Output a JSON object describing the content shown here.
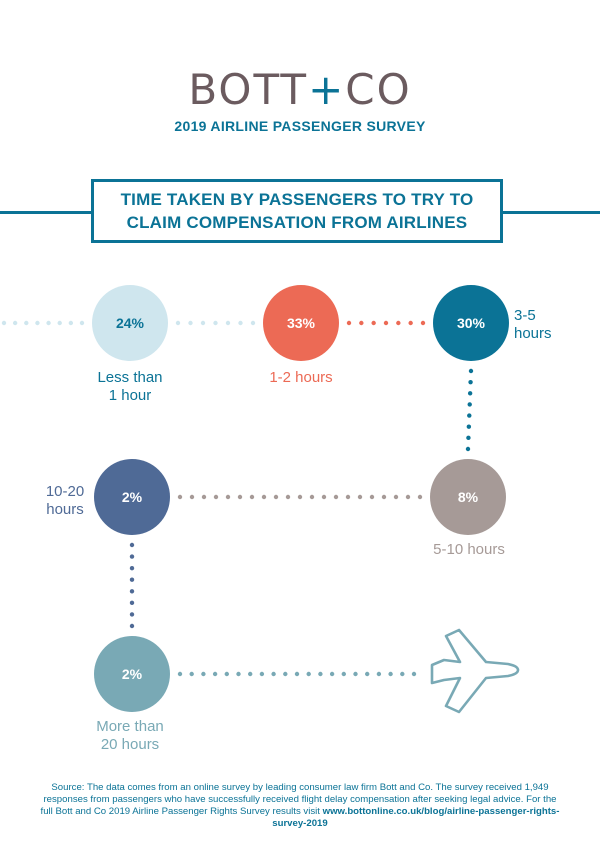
{
  "header": {
    "brand_left": "BOTT",
    "brand_plus": "+",
    "brand_right": "CO",
    "survey": "2019 AIRLINE PASSENGER SURVEY"
  },
  "title_lines": [
    "TIME TAKEN BY PASSENGERS TO TRY TO",
    "CLAIM COMPENSATION FROM AIRLINES"
  ],
  "chart_data": {
    "type": "other",
    "title": "TIME TAKEN BY PASSENGERS TO TRY TO CLAIM COMPENSATION FROM AIRLINES",
    "categories": [
      "Less than 1 hour",
      "1-2 hours",
      "3-5 hours",
      "5-10 hours",
      "10-20 hours",
      "More than 20 hours"
    ],
    "values": [
      24,
      33,
      30,
      8,
      2,
      2
    ],
    "value_labels": [
      "24%",
      "33%",
      "30%",
      "8%",
      "2%",
      "2%"
    ],
    "label_lines": [
      [
        "Less than",
        "1 hour"
      ],
      [
        "1-2 hours"
      ],
      [
        "3-5",
        "hours"
      ],
      [
        "5-10 hours"
      ],
      [
        "10-20",
        "hours"
      ],
      [
        "More than",
        "20 hours"
      ]
    ],
    "colors": [
      "#cfe6ee",
      "#ec6a55",
      "#0b7396",
      "#a69a97",
      "#4f6a96",
      "#79a9b5"
    ],
    "label_colors": [
      "#0b7396",
      "#ec6a55",
      "#0b7396",
      "#a69a97",
      "#4f6a96",
      "#79a9b5"
    ],
    "value_text_colors": [
      "#0b7396",
      "#ffffff",
      "#ffffff",
      "#ffffff",
      "#ffffff",
      "#ffffff"
    ],
    "path_colors": [
      "#cfe6ee",
      "#cfe6ee",
      "#ec6a55",
      "#0b7396",
      "#a69a97",
      "#4f6a96",
      "#79a9b5"
    ],
    "end_icon": "airplane-icon"
  },
  "source": {
    "text": "Source: The data comes from an online survey by leading consumer law firm Bott and Co. The survey received 1,949 responses from passengers who have successfully received flight delay compensation after seeking legal advice. For the full Bott and Co 2019 Airline Passenger Rights Survey results visit ",
    "link": "www.bottonline.co.uk/blog/airline-passenger-rights-survey-2019"
  }
}
